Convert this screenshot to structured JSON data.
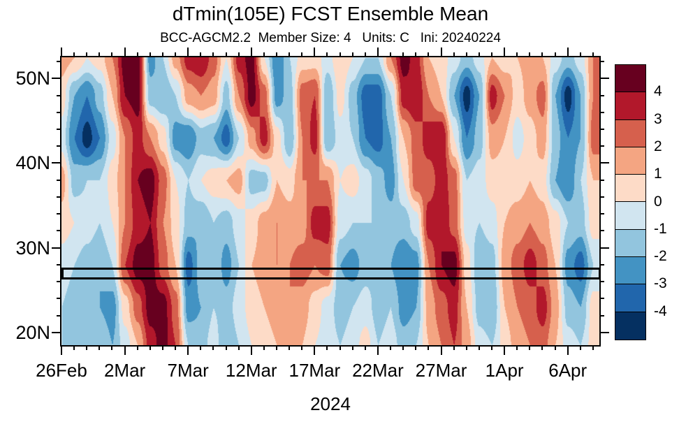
{
  "chart_data": {
    "type": "heatmap",
    "title": "dTmin(105E) FCST Ensemble Mean",
    "subtitle": "BCC-AGCM2.2  Member Size: 4   Units: C   Ini: 20240224",
    "x_axis_title": "2024",
    "units": "C",
    "x_axis": {
      "tick_labels": [
        "26Feb",
        "2Mar",
        "7Mar",
        "12Mar",
        "17Mar",
        "22Mar",
        "27Mar",
        "1Apr",
        "6Apr"
      ],
      "tick_days": [
        0,
        5,
        10,
        15,
        20,
        25,
        30,
        35,
        40
      ],
      "minor_interval_days": 1,
      "range_days": [
        0,
        42.5
      ]
    },
    "y_axis": {
      "tick_labels": [
        "20N",
        "30N",
        "40N",
        "50N"
      ],
      "tick_lats": [
        20,
        30,
        40,
        50
      ],
      "minor_interval_deg": 2,
      "range_lat": [
        18.5,
        52.5
      ]
    },
    "colorbar": {
      "tick_labels": [
        "4",
        "3",
        "2",
        "1",
        "0",
        "-1",
        "-2",
        "-3",
        "-4"
      ],
      "levels": [
        4,
        3,
        2,
        1,
        0,
        -1,
        -2,
        -3,
        -4
      ],
      "colors_warm_to_cold": [
        "#67001f",
        "#b2182b",
        "#d6604d",
        "#f4a582",
        "#fddbc7",
        "#d1e5f0",
        "#92c5de",
        "#4393c3",
        "#2166ac",
        "#053061"
      ]
    },
    "highlight_box": {
      "lat_range": [
        26.3,
        27.7
      ],
      "day_range": [
        0,
        42.5
      ]
    },
    "grid": {
      "day_step": 1,
      "lats": [
        18.5,
        23,
        28,
        33,
        38,
        43,
        48,
        52.5
      ]
    },
    "values_by_day": [
      [
        -1,
        -1,
        -0.5,
        0.5,
        1.5,
        -0.5,
        0.5,
        1.5
      ],
      [
        -1,
        -1.5,
        -1,
        0,
        -1.5,
        -3,
        -2,
        1
      ],
      [
        -1.5,
        -2,
        -1.5,
        -0.5,
        -1,
        -4.5,
        -3,
        0
      ],
      [
        -1,
        -2,
        -2,
        -1,
        -1,
        -3,
        -1.5,
        0.5
      ],
      [
        -2,
        -2.5,
        -1,
        0,
        0.5,
        -0.5,
        1,
        2
      ],
      [
        -0.5,
        0.5,
        3,
        2,
        2,
        2,
        4,
        4.5
      ],
      [
        1,
        2.5,
        4.5,
        3.5,
        4,
        3.5,
        4.5,
        4.5
      ],
      [
        3.5,
        4.5,
        4.5,
        4,
        4.5,
        2,
        -1.5,
        -2.5
      ],
      [
        4.5,
        4.5,
        2.5,
        2,
        2.5,
        0.5,
        -2,
        -1
      ],
      [
        3,
        2.5,
        1,
        0.5,
        0,
        -2.5,
        -1,
        1.5
      ],
      [
        -1,
        -2.5,
        -3.5,
        -1.5,
        -1,
        -3,
        1.5,
        3.5
      ],
      [
        -1.5,
        -2,
        -1.5,
        -2,
        0,
        -1.5,
        2,
        4
      ],
      [
        -0.5,
        -1,
        -1,
        -1,
        0.5,
        -2,
        1.5,
        2.5
      ],
      [
        -2,
        -1.5,
        -2.5,
        -1.5,
        1,
        -3.5,
        -1.5,
        0
      ],
      [
        -1,
        -0.5,
        -1,
        -0.5,
        1.5,
        -1,
        2,
        3.5
      ],
      [
        0,
        0.5,
        1,
        0.5,
        -1.5,
        1.5,
        4.5,
        4.5
      ],
      [
        0.5,
        1,
        1.5,
        1.5,
        -1.5,
        3.5,
        2.5,
        0
      ],
      [
        1,
        1.5,
        2,
        2,
        1,
        0.5,
        -2.5,
        -3
      ],
      [
        1.5,
        2,
        2,
        1.5,
        0.5,
        -2,
        -1.5,
        -1
      ],
      [
        1,
        1.5,
        2.5,
        1.5,
        2,
        2,
        2.5,
        0.5
      ],
      [
        0,
        0.5,
        2,
        3.5,
        2,
        3.5,
        3,
        0.5
      ],
      [
        -0.5,
        -0.5,
        2.5,
        3.5,
        2,
        -2,
        -2,
        -0.5
      ],
      [
        -1,
        -1.5,
        -2,
        -0.5,
        0,
        -0.5,
        0.5,
        1
      ],
      [
        -0.5,
        -1,
        -2.5,
        -1,
        0.5,
        -1,
        -1.5,
        0
      ],
      [
        0.5,
        -0.5,
        -1.5,
        -1,
        -0.5,
        -3,
        -3.5,
        -1
      ],
      [
        -1,
        -1.5,
        -1.5,
        -1,
        -1.5,
        -3.5,
        -3.5,
        -1
      ],
      [
        -0.5,
        -1,
        -2,
        -1.5,
        -2.5,
        -2,
        -1,
        2
      ],
      [
        -1.5,
        -2.5,
        -3,
        -1.5,
        0,
        1,
        3.5,
        4.5
      ],
      [
        -1,
        -2,
        -2.5,
        -0.5,
        2.5,
        2.5,
        4,
        3.5
      ],
      [
        1,
        1.5,
        2,
        3.5,
        2.5,
        3.5,
        2,
        1
      ],
      [
        2,
        2.5,
        4,
        4,
        3.5,
        4,
        1,
        0.5
      ],
      [
        3,
        3.5,
        4.5,
        2.5,
        2.5,
        0,
        -2,
        -0.5
      ],
      [
        1.5,
        1,
        0.5,
        -0.5,
        -1,
        -3,
        -4.5,
        -1.5
      ],
      [
        -0.5,
        -1.5,
        -2,
        -1,
        -0.5,
        -1.5,
        -2,
        -0.5
      ],
      [
        -1,
        -2,
        -1.5,
        -0.5,
        0.5,
        1.5,
        3.5,
        1
      ],
      [
        0.5,
        1,
        1.5,
        1,
        0.5,
        1,
        2,
        0.5
      ],
      [
        1.5,
        2,
        2.5,
        1.5,
        0.5,
        -0.5,
        0.5,
        1
      ],
      [
        2,
        2.5,
        3.5,
        2,
        1,
        0.5,
        1.5,
        1.5
      ],
      [
        2.5,
        3.5,
        2.5,
        1.5,
        0.5,
        1.5,
        2.5,
        1
      ],
      [
        1,
        1.5,
        1,
        0.5,
        -2,
        -1.5,
        -2,
        -0.5
      ],
      [
        -0.5,
        -1.5,
        -2.5,
        -1,
        -3,
        -3,
        -4.5,
        -1.5
      ],
      [
        -1,
        -2,
        -3.5,
        -1.5,
        -1,
        -2,
        -2,
        -0.5
      ],
      [
        0.5,
        0.5,
        -1,
        0.5,
        1,
        2.5,
        2,
        2
      ]
    ]
  }
}
